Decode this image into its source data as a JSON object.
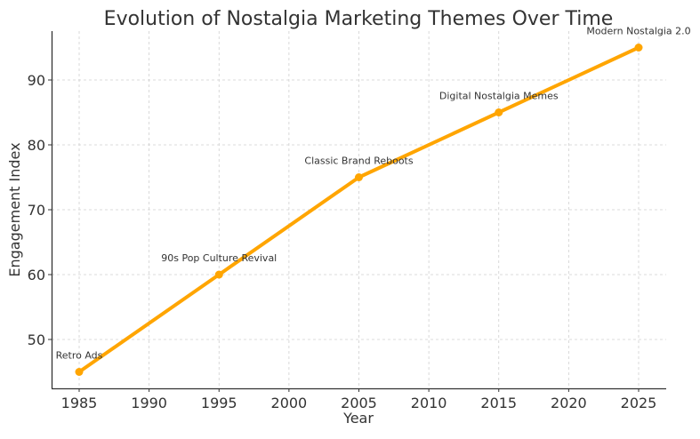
{
  "chart_data": {
    "type": "line",
    "title": "Evolution of Nostalgia Marketing Themes Over Time",
    "xlabel": "Year",
    "ylabel": "Engagement Index",
    "x": [
      1985,
      1995,
      2005,
      2015,
      2025
    ],
    "series": [
      {
        "name": "Engagement Index",
        "values": [
          45,
          60,
          75,
          85,
          95
        ],
        "color": "#FFA500"
      }
    ],
    "annotations": [
      {
        "x": 1985,
        "y": 45,
        "text": "Retro Ads"
      },
      {
        "x": 1995,
        "y": 60,
        "text": "90s Pop Culture Revival"
      },
      {
        "x": 2005,
        "y": 75,
        "text": "Classic Brand Reboots"
      },
      {
        "x": 2015,
        "y": 85,
        "text": "Digital Nostalgia Memes"
      },
      {
        "x": 2025,
        "y": 95,
        "text": "Modern Nostalgia 2.0"
      }
    ],
    "xticks": [
      1985,
      1990,
      1995,
      2000,
      2005,
      2010,
      2015,
      2020,
      2025
    ],
    "yticks": [
      50,
      60,
      70,
      80,
      90
    ],
    "xlim": [
      1983,
      2027
    ],
    "ylim": [
      42.5,
      97.5
    ],
    "grid": true,
    "legend": false
  }
}
